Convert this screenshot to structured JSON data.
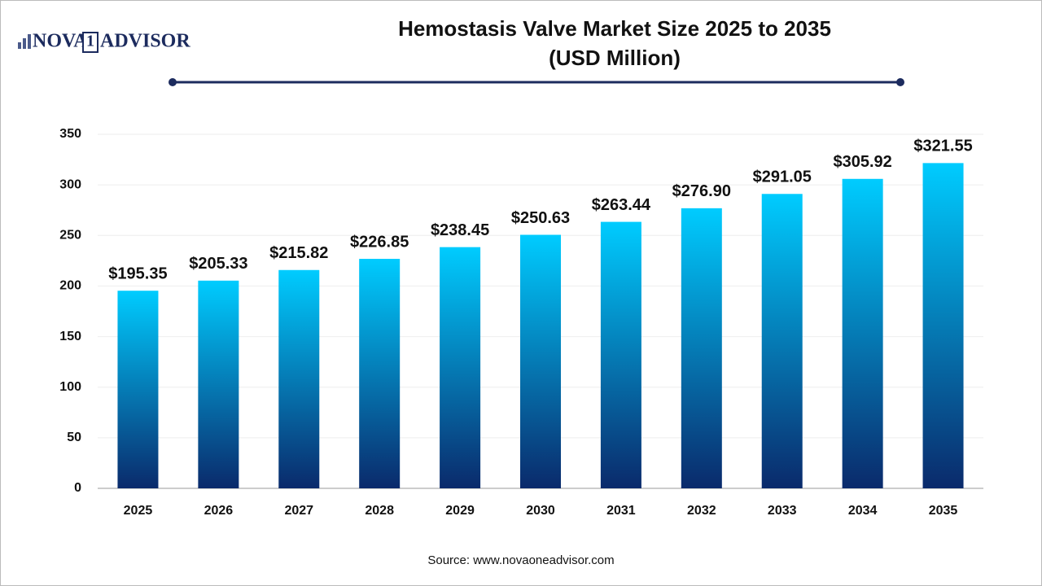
{
  "logo": {
    "left": "NOVA",
    "mark": "1",
    "right": "ADVISOR"
  },
  "chart_data": {
    "type": "bar",
    "title": "Hemostasis Valve Market Size 2025 to 2035",
    "subtitle": "(USD Million)",
    "categories": [
      "2025",
      "2026",
      "2027",
      "2028",
      "2029",
      "2030",
      "2031",
      "2032",
      "2033",
      "2034",
      "2035"
    ],
    "values": [
      195.35,
      205.33,
      215.82,
      226.85,
      238.45,
      250.63,
      263.44,
      276.9,
      291.05,
      305.92,
      321.55
    ],
    "value_labels": [
      "$195.35",
      "$205.33",
      "$215.82",
      "$226.85",
      "$238.45",
      "$250.63",
      "$263.44",
      "$276.90",
      "$291.05",
      "$305.92",
      "$321.55"
    ],
    "gradient": [
      "#00ccff",
      "#0a2a6b"
    ],
    "ylim": [
      0,
      350
    ],
    "yticks": [
      0,
      50,
      100,
      150,
      200,
      250,
      300,
      350
    ],
    "grid": true,
    "source": "Source: www.novaoneadvisor.com"
  }
}
